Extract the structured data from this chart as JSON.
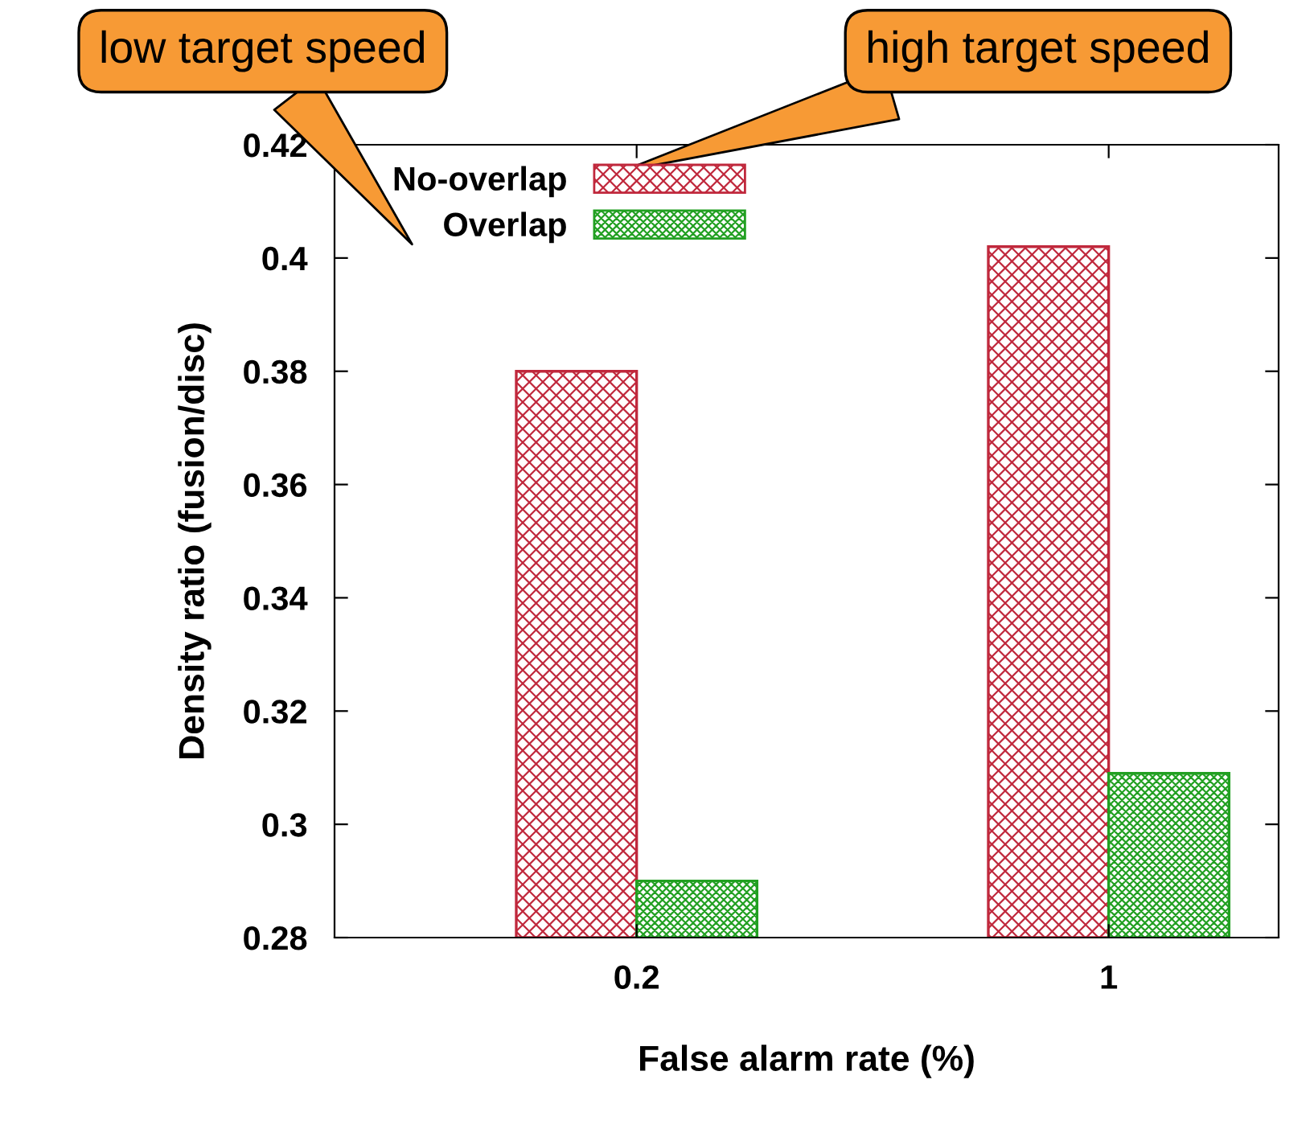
{
  "chart_data": {
    "type": "bar",
    "xlabel": "False alarm rate (%)",
    "ylabel": "Density ratio (fusion/disc)",
    "categories": [
      "0.2",
      "1"
    ],
    "series": [
      {
        "name": "No-overlap",
        "color": "#c0283c",
        "values": [
          0.38,
          0.402
        ]
      },
      {
        "name": "Overlap",
        "color": "#22a022",
        "values": [
          0.29,
          0.309
        ]
      }
    ],
    "ylim": [
      0.28,
      0.42
    ],
    "yticks": [
      0.28,
      0.3,
      0.32,
      0.34,
      0.36,
      0.38,
      0.4,
      0.42
    ],
    "grid": false,
    "legend": "top left",
    "annotations": [
      "high target speed",
      "low target speed"
    ]
  }
}
